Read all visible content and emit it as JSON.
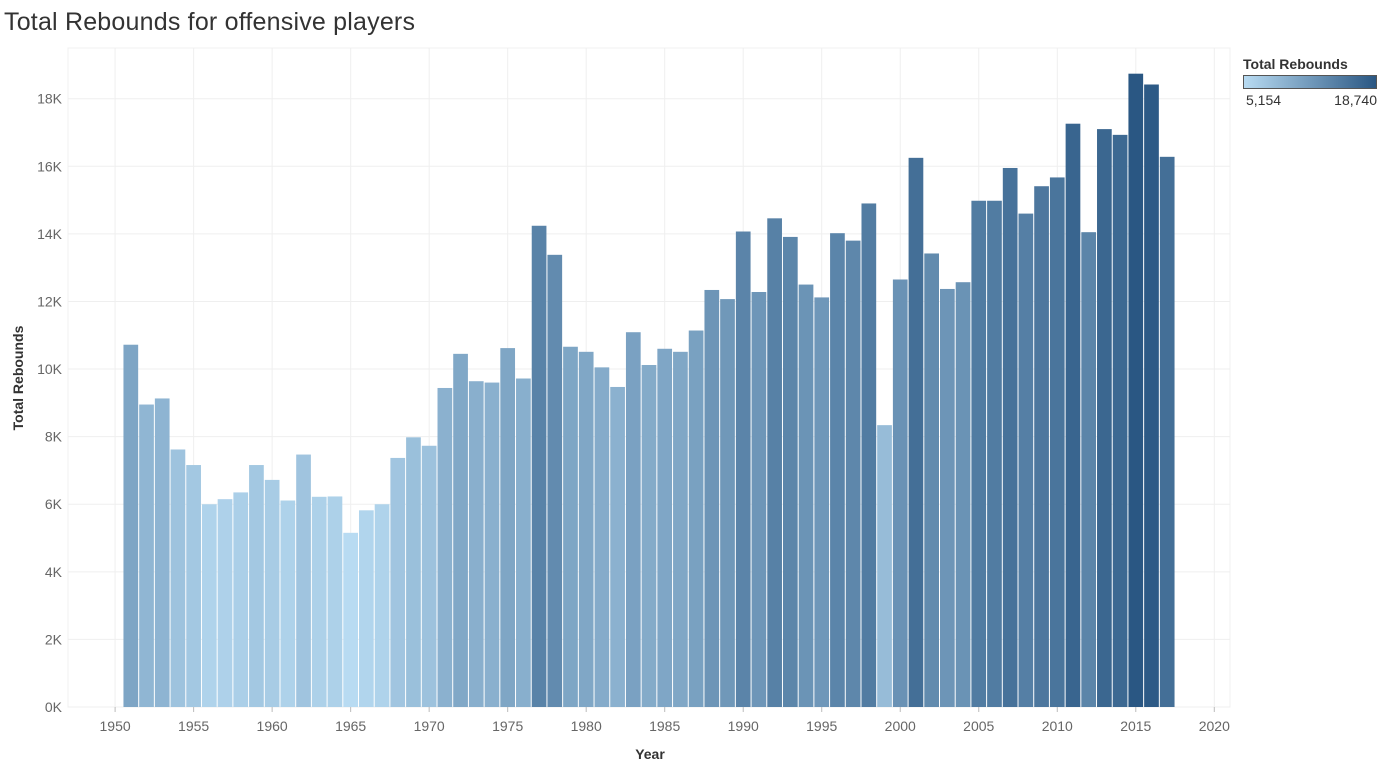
{
  "chart_data": {
    "type": "bar",
    "title": "Total Rebounds for offensive players",
    "xlabel": "Year",
    "ylabel": "Total Rebounds",
    "xlim": [
      1947,
      2021
    ],
    "ylim": [
      0,
      19500
    ],
    "x_ticks": [
      1950,
      1955,
      1960,
      1965,
      1970,
      1975,
      1980,
      1985,
      1990,
      1995,
      2000,
      2005,
      2010,
      2015,
      2020
    ],
    "x_tick_labels": [
      "1950",
      "1955",
      "1960",
      "1965",
      "1970",
      "1975",
      "1980",
      "1985",
      "1990",
      "1995",
      "2000",
      "2005",
      "2010",
      "2015",
      "2020"
    ],
    "y_ticks": [
      0,
      2000,
      4000,
      6000,
      8000,
      10000,
      12000,
      14000,
      16000,
      18000
    ],
    "y_tick_labels": [
      "0K",
      "2K",
      "4K",
      "6K",
      "8K",
      "10K",
      "12K",
      "14K",
      "16K",
      "18K"
    ],
    "grid": true,
    "legend_placement": "top-right",
    "x": [
      1951,
      1952,
      1953,
      1954,
      1955,
      1956,
      1957,
      1958,
      1959,
      1960,
      1961,
      1962,
      1963,
      1964,
      1965,
      1966,
      1967,
      1968,
      1969,
      1970,
      1971,
      1972,
      1973,
      1974,
      1975,
      1976,
      1977,
      1978,
      1979,
      1980,
      1981,
      1982,
      1983,
      1984,
      1985,
      1986,
      1987,
      1988,
      1989,
      1990,
      1991,
      1992,
      1993,
      1994,
      1995,
      1996,
      1997,
      1998,
      1999,
      2000,
      2001,
      2002,
      2003,
      2004,
      2005,
      2006,
      2007,
      2008,
      2009,
      2010,
      2011,
      2012,
      2013,
      2014,
      2015,
      2016,
      2017
    ],
    "values": [
      10720,
      8950,
      9130,
      7620,
      7160,
      6000,
      6150,
      6350,
      7160,
      6720,
      6110,
      7470,
      6220,
      6230,
      5154,
      5820,
      6000,
      7370,
      7980,
      7730,
      9440,
      10450,
      9640,
      9600,
      10620,
      9720,
      14240,
      13380,
      10660,
      10510,
      10050,
      9470,
      11090,
      10120,
      10600,
      10510,
      11140,
      12340,
      12070,
      14070,
      12280,
      14460,
      13910,
      12500,
      12120,
      14020,
      13800,
      14900,
      8340,
      12650,
      16250,
      13420,
      12370,
      12570,
      14980,
      14980,
      15950,
      14600,
      15410,
      15670,
      17260,
      14050,
      17100,
      16930,
      18740,
      18420,
      16280
    ],
    "color_legend": {
      "title": "Total Rebounds",
      "min": 5154,
      "max": 18740,
      "min_label": "5,154",
      "max_label": "18,740",
      "min_color": "#b8dbf2",
      "max_color": "#2a5783"
    }
  }
}
